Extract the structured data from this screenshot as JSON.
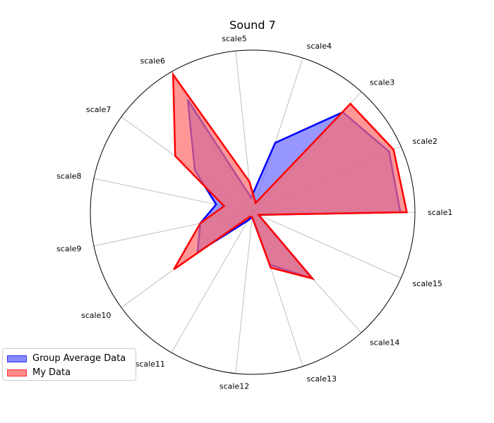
{
  "chart_data": {
    "type": "radar",
    "title": "Sound 7",
    "categories": [
      "scale1",
      "scale2",
      "scale3",
      "scale4",
      "scale5",
      "scale6",
      "scale7",
      "scale8",
      "scale9",
      "scale10",
      "scale11",
      "scale12",
      "scale13",
      "scale14",
      "scale15"
    ],
    "rmax": 10,
    "grid": true,
    "legend_position": "lower-left",
    "series": [
      {
        "name": "Group Average Data",
        "values": [
          9.1,
          9.2,
          8.3,
          4.5,
          0.9,
          8.0,
          4.4,
          2.3,
          3.3,
          4.2,
          0.6,
          0.3,
          3.4,
          5.5,
          0.4
        ],
        "line_color": "#0000ff",
        "fill_color": "#6b6bff"
      },
      {
        "name": "My Data",
        "values": [
          9.5,
          9.5,
          9.0,
          0.6,
          1.9,
          9.8,
          5.9,
          1.8,
          3.3,
          6.0,
          0.3,
          0.3,
          3.6,
          5.5,
          0.4
        ],
        "line_color": "#ff0000",
        "fill_color": "#ff6b6b"
      }
    ]
  }
}
